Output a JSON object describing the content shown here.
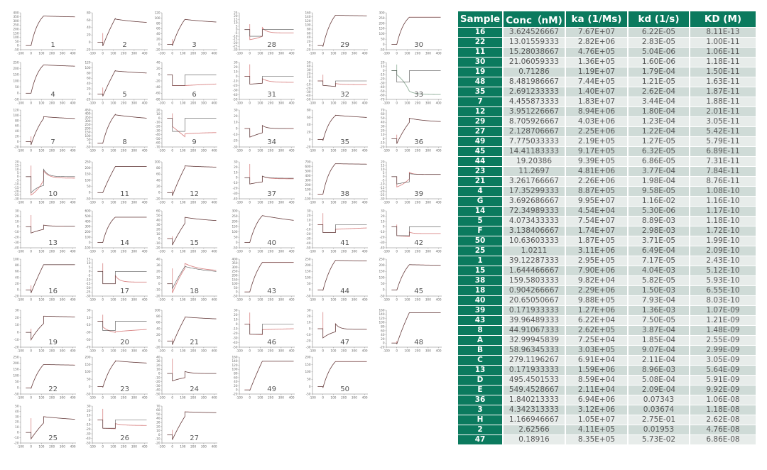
{
  "table": {
    "headers": [
      "Sample",
      "Conc（nM)",
      "ka (1/Ms)",
      "kd (1/s)",
      "KD (M)"
    ],
    "colors": {
      "header_bg": "#0b7a5e",
      "row_dark": "#cfdbd7",
      "row_light": "#e7ecea"
    },
    "rows": [
      [
        "16",
        "3.624526667",
        "7.67E+07",
        "6.22E-05",
        "8.11E-13"
      ],
      [
        "22",
        "13.01559333",
        "2.82E+06",
        "2.83E-05",
        "1.00E-11"
      ],
      [
        "11",
        "15.28038667",
        "4.76E+05",
        "5.04E-06",
        "1.06E-11"
      ],
      [
        "30",
        "21.06059333",
        "1.36E+05",
        "1.60E-06",
        "1.18E-11"
      ],
      [
        "19",
        "0.71286",
        "1.19E+07",
        "1.79E-04",
        "1.50E-11"
      ],
      [
        "48",
        "8.481986667",
        "7.44E+05",
        "1.21E-05",
        "1.63E-11"
      ],
      [
        "35",
        "2.691233333",
        "1.40E+07",
        "2.62E-04",
        "1.87E-11"
      ],
      [
        "7",
        "4.455873333",
        "1.83E+07",
        "3.44E-04",
        "1.88E-11"
      ],
      [
        "12",
        "3.951226667",
        "8.94E+06",
        "1.80E-04",
        "2.01E-11"
      ],
      [
        "29",
        "8.705926667",
        "4.03E+06",
        "1.23E-04",
        "3.05E-11"
      ],
      [
        "27",
        "2.128706667",
        "2.25E+06",
        "1.22E-04",
        "5.42E-11"
      ],
      [
        "49",
        "7.775033333",
        "2.19E+05",
        "1.27E-05",
        "5.79E-11"
      ],
      [
        "45",
        "14.41183333",
        "9.17E+05",
        "6.32E-05",
        "6.89E-11"
      ],
      [
        "44",
        "19.20386",
        "9.39E+05",
        "6.86E-05",
        "7.31E-11"
      ],
      [
        "23",
        "11.2697",
        "4.81E+06",
        "3.77E-04",
        "7.84E-11"
      ],
      [
        "21",
        "3.261766667",
        "2.26E+06",
        "1.98E-04",
        "8.76E-11"
      ],
      [
        "4",
        "17.35299333",
        "8.87E+05",
        "9.58E-05",
        "1.08E-10"
      ],
      [
        "G",
        "3.692686667",
        "9.95E+07",
        "1.16E-02",
        "1.16E-10"
      ],
      [
        "14",
        "72.34989333",
        "4.54E+04",
        "5.30E-06",
        "1.17E-10"
      ],
      [
        "5",
        "4.073433333",
        "7.54E+07",
        "8.89E-03",
        "1.18E-10"
      ],
      [
        "F",
        "3.138406667",
        "1.74E+07",
        "2.98E-03",
        "1.72E-10"
      ],
      [
        "50",
        "10.63603333",
        "1.87E+05",
        "3.71E-05",
        "1.99E-10"
      ],
      [
        "25",
        "1.0211",
        "3.11E+06",
        "6.49E-04",
        "2.09E-10"
      ],
      [
        "1",
        "39.12287333",
        "2.95E+05",
        "7.17E-05",
        "2.43E-10"
      ],
      [
        "15",
        "1.644466667",
        "7.90E+06",
        "4.04E-03",
        "5.12E-10"
      ],
      [
        "38",
        "159.5803333",
        "9.82E+04",
        "5.82E-05",
        "5.93E-10"
      ],
      [
        "18",
        "0.904266667",
        "2.29E+06",
        "1.50E-03",
        "6.55E-10"
      ],
      [
        "40",
        "20.65050667",
        "9.88E+05",
        "7.93E-04",
        "8.03E-10"
      ],
      [
        "39",
        "0.171933333",
        "1.27E+06",
        "1.36E-03",
        "1.07E-09"
      ],
      [
        "43",
        "39.96489333",
        "6.22E+04",
        "7.50E-05",
        "1.21E-09"
      ],
      [
        "8",
        "44.91067333",
        "2.62E+05",
        "3.87E-04",
        "1.48E-09"
      ],
      [
        "A",
        "32.99945839",
        "7.25E+04",
        "1.85E-04",
        "2.55E-09"
      ],
      [
        "B",
        "58.96345333",
        "3.03E+05",
        "9.07E-04",
        "2.99E-09"
      ],
      [
        "C",
        "279.1196267",
        "6.91E+04",
        "2.11E-04",
        "3.05E-09"
      ],
      [
        "13",
        "0.171933333",
        "1.59E+06",
        "8.96E-03",
        "5.64E-09"
      ],
      [
        "D",
        "495.4501533",
        "8.59E+04",
        "5.08E-04",
        "5.91E-09"
      ],
      [
        "E",
        "549.4528667",
        "2.11E+04",
        "2.09E-04",
        "9.92E-09"
      ],
      [
        "36",
        "1.840213333",
        "6.94E+06",
        "0.07343",
        "1.06E-08"
      ],
      [
        "3",
        "4.342313333",
        "3.12E+06",
        "0.03674",
        "1.18E-08"
      ],
      [
        "H",
        "1.166946667",
        "1.05E+07",
        "2.75E-01",
        "2.62E-08"
      ],
      [
        "2",
        "2.62566",
        "4.11E+05",
        "0.01953",
        "4.76E-08"
      ],
      [
        "47",
        "0.18916",
        "8.35E+05",
        "5.73E-02",
        "6.86E-08"
      ]
    ]
  },
  "chart_data": {
    "type": "line",
    "description_fields": "each panel: label, ylim, ystep; series curves in data units: a0=value after injection start (t=0), p=value at end of association (t=120), k=curvature, d0=value at dissociation start, e=value at t=420, tau=decay constant (s), spike=injection artefact value at t=0",
    "xlim": [
      -100,
      430
    ],
    "xticks": [
      -100,
      0,
      100,
      200,
      300,
      400
    ],
    "series_colors": {
      "measured": "#333333",
      "fit": "#d98585"
    },
    "panels": [
      {
        "label": "1",
        "ylim": [
          -50,
          400
        ],
        "ystep": 50,
        "m": [
          0,
          360,
          1.5,
          360,
          350,
          1000
        ],
        "spike": 0
      },
      {
        "label": "2",
        "ylim": [
          -20,
          80
        ],
        "ystep": 20,
        "m": [
          -10,
          65,
          0.3,
          63,
          54,
          300
        ],
        "spike": 25
      },
      {
        "label": "3",
        "ylim": [
          -20,
          120
        ],
        "ystep": 20,
        "m": [
          -5,
          95,
          0.8,
          95,
          85,
          400
        ],
        "spike": 20
      },
      {
        "label": "4",
        "ylim": [
          -50,
          250
        ],
        "ystep": 50,
        "m": [
          0,
          230,
          1.5,
          230,
          220,
          1000
        ],
        "spike": 0
      },
      {
        "label": "5",
        "ylim": [
          -20,
          120
        ],
        "ystep": 20,
        "m": [
          -8,
          90,
          0.2,
          88,
          80,
          400
        ],
        "spike": 25
      },
      {
        "label": "6",
        "ylim": [
          -80,
          40
        ],
        "ystep": 20,
        "m": [
          -35,
          -35,
          0,
          0,
          0,
          1
        ],
        "f": [
          -35,
          -35,
          0,
          -35,
          -30,
          1000
        ],
        "spike": 0
      },
      {
        "label": "7",
        "ylim": [
          -20,
          120
        ],
        "ystep": 20,
        "m": [
          -12,
          88,
          0.8,
          95,
          88,
          300
        ],
        "spike": 20
      },
      {
        "label": "8",
        "ylim": [
          -50,
          450
        ],
        "ystep": 50,
        "m": [
          0,
          390,
          1.2,
          385,
          340,
          500
        ],
        "spike": 0
      },
      {
        "label": "9",
        "ylim": [
          -70,
          20
        ],
        "ystep": 10,
        "m": [
          -32,
          -32,
          0,
          0,
          0,
          1
        ],
        "f": [
          -20,
          -45,
          0,
          -38,
          -35,
          200
        ],
        "spike": 12
      },
      {
        "label": "10",
        "ylim": [
          -30,
          20
        ],
        "ystep": 5,
        "m": [
          -22,
          -12,
          1.5,
          10,
          0,
          40
        ],
        "f": [
          -25,
          -5,
          -1,
          8,
          -2,
          50
        ],
        "spike": 15
      },
      {
        "label": "11",
        "ylim": [
          -50,
          250
        ],
        "ystep": 50,
        "m": [
          0,
          212,
          0.3,
          212,
          212,
          1000
        ],
        "spike": 0
      },
      {
        "label": "12",
        "ylim": [
          -20,
          100
        ],
        "ystep": 20,
        "m": [
          -10,
          82,
          0.3,
          87,
          83,
          300
        ],
        "spike": 8
      },
      {
        "label": "13",
        "ylim": [
          -40,
          30
        ],
        "ystep": 10,
        "m": [
          -12,
          -5,
          0.5,
          3,
          1,
          50
        ],
        "spike": 22
      },
      {
        "label": "14",
        "ylim": [
          -100,
          600
        ],
        "ystep": 100,
        "m": [
          0,
          480,
          1.5,
          480,
          480,
          1000
        ],
        "spike": 0
      },
      {
        "label": "15",
        "ylim": [
          -20,
          60
        ],
        "ystep": 10,
        "m": [
          -14,
          33,
          0.3,
          46,
          39,
          300
        ],
        "spike": 5
      },
      {
        "label": "16",
        "ylim": [
          -20,
          100
        ],
        "ystep": 20,
        "m": [
          -10,
          82,
          0.2,
          82,
          82,
          1000
        ],
        "spike": 15
      },
      {
        "label": "17",
        "ylim": [
          -30,
          15
        ],
        "ystep": 5,
        "m": [
          -15,
          -15,
          0,
          0,
          0,
          1
        ],
        "f": [
          -15,
          -15,
          0,
          -5,
          -13,
          40
        ],
        "spike": 10
      },
      {
        "label": "18",
        "ylim": [
          -20,
          40
        ],
        "ystep": 10,
        "m": [
          -8,
          28,
          0.3,
          28,
          20,
          300
        ],
        "f": [
          -15,
          25,
          0.5,
          33,
          22,
          150
        ],
        "spike": 25
      },
      {
        "label": "19",
        "ylim": [
          -20,
          30
        ],
        "ystep": 10,
        "m": [
          -10,
          12,
          0.6,
          22,
          21,
          1000
        ],
        "spike": 5
      },
      {
        "label": "20",
        "ylim": [
          -70,
          30
        ],
        "ystep": 20,
        "m": [
          -25,
          -25,
          0,
          0,
          0,
          1
        ],
        "f": [
          -15,
          -30,
          1.5,
          -28,
          -22,
          1000
        ],
        "spike": 18
      },
      {
        "label": "21",
        "ylim": [
          -20,
          100
        ],
        "ystep": 20,
        "m": [
          -12,
          75,
          0.3,
          78,
          72,
          500
        ],
        "spike": 8
      },
      {
        "label": "22",
        "ylim": [
          -50,
          250
        ],
        "ystep": 50,
        "m": [
          -5,
          190,
          1,
          190,
          185,
          1000
        ],
        "spike": 0
      },
      {
        "label": "23",
        "ylim": [
          -50,
          200
        ],
        "ystep": 50,
        "m": [
          -5,
          170,
          1,
          175,
          160,
          400
        ],
        "spike": 0
      },
      {
        "label": "24",
        "ylim": [
          -50,
          40
        ],
        "ystep": 10,
        "m": [
          -18,
          -10,
          0.5,
          5,
          0,
          60
        ],
        "spike": 36
      },
      {
        "label": "25",
        "ylim": [
          -20,
          50
        ],
        "ystep": 10,
        "m": [
          -12,
          18,
          0.3,
          30,
          25,
          500
        ],
        "spike": 27
      },
      {
        "label": "26",
        "ylim": [
          -50,
          30
        ],
        "ystep": 10,
        "m": [
          -18,
          -18,
          0,
          0,
          0,
          1
        ],
        "f": [
          -18,
          -19,
          0,
          -8,
          -12,
          80
        ],
        "spike": 24
      },
      {
        "label": "27",
        "ylim": [
          -20,
          70
        ],
        "ystep": 10,
        "m": [
          -12,
          45,
          0.3,
          56,
          54,
          1000
        ],
        "spike": 12
      },
      {
        "label": "28",
        "ylim": [
          -30,
          25
        ],
        "ystep": 5,
        "m": [
          -10,
          -10,
          0,
          0,
          0,
          1
        ],
        "f": [
          -15,
          -10,
          -1,
          3,
          -5,
          40
        ],
        "spike": 8
      },
      {
        "label": "29",
        "ylim": [
          -20,
          160
        ],
        "ystep": 20,
        "m": [
          -5,
          148,
          1.2,
          148,
          145,
          1000
        ],
        "spike": 0
      },
      {
        "label": "30",
        "ylim": [
          -50,
          300
        ],
        "ystep": 50,
        "m": [
          0,
          258,
          1.5,
          258,
          258,
          1000
        ],
        "spike": 0
      },
      {
        "label": "31",
        "ylim": [
          -50,
          30
        ],
        "ystep": 10,
        "m": [
          -17,
          -15,
          0,
          0,
          0,
          1
        ],
        "f": [
          -17,
          -15,
          0,
          -5,
          -13,
          60
        ],
        "spike": 26
      },
      {
        "label": "32",
        "ylim": [
          -50,
          50
        ],
        "ystep": 10,
        "m": [
          -12,
          -15,
          0,
          0,
          0,
          1
        ],
        "f": [
          -12,
          -15,
          0,
          -7,
          -10,
          60
        ],
        "spike": 17
      },
      {
        "label": "33",
        "ylim": [
          -70,
          20
        ],
        "ystep": 10,
        "m": [
          -28,
          -28,
          0,
          0,
          0,
          1
        ],
        "f": [
          -10,
          -50,
          -1,
          -50,
          -58,
          60
        ],
        "fit_color": "#8fae98",
        "spike": 15
      },
      {
        "label": "34",
        "ylim": [
          -30,
          30
        ],
        "ystep": 10,
        "m": [
          -14,
          -7,
          0.3,
          5,
          0,
          40
        ],
        "spike": 0
      },
      {
        "label": "35",
        "ylim": [
          -20,
          80
        ],
        "ystep": 20,
        "m": [
          -3,
          65,
          1.5,
          66,
          60,
          600
        ],
        "spike": 3
      },
      {
        "label": "36",
        "ylim": [
          -20,
          70
        ],
        "ystep": 10,
        "m": [
          -12,
          40,
          0.5,
          50,
          42,
          200
        ],
        "spike": 10
      },
      {
        "label": "37",
        "ylim": [
          -40,
          30
        ],
        "ystep": 10,
        "m": [
          -12,
          -8,
          0.5,
          3,
          -1,
          50
        ],
        "f": [
          -12,
          -8,
          0.5,
          3,
          -2,
          50
        ],
        "spike": 26
      },
      {
        "label": "38",
        "ylim": [
          -100,
          700
        ],
        "ystep": 100,
        "m": [
          0,
          660,
          1.5,
          660,
          650,
          1000
        ],
        "spike": 0
      },
      {
        "label": "39",
        "ylim": [
          -30,
          20
        ],
        "ystep": 5,
        "m": [
          -10,
          -7,
          0.3,
          4,
          3,
          50
        ],
        "f": [
          -14,
          -3,
          -1,
          6,
          3,
          30
        ],
        "spike": 0
      },
      {
        "label": "40",
        "ylim": [
          -50,
          300
        ],
        "ystep": 50,
        "m": [
          0,
          255,
          1.2,
          255,
          210,
          800
        ],
        "spike": 0
      },
      {
        "label": "41",
        "ylim": [
          -50,
          30
        ],
        "ystep": 10,
        "m": [
          -17,
          -17,
          0,
          0,
          0,
          1
        ],
        "f": [
          -17,
          -17,
          0,
          -10,
          -7,
          1000
        ],
        "spike": 25
      },
      {
        "label": "42",
        "ylim": [
          -40,
          30
        ],
        "ystep": 10,
        "m": [
          -17,
          -17,
          0,
          0,
          0,
          1
        ],
        "f": [
          -17,
          -19,
          0,
          -10,
          -13,
          30
        ],
        "spike": 4
      },
      {
        "label": "43",
        "ylim": [
          -50,
          400
        ],
        "ystep": 50,
        "m": [
          0,
          360,
          1,
          360,
          360,
          1000
        ],
        "spike": 0
      },
      {
        "label": "44",
        "ylim": [
          -50,
          250
        ],
        "ystep": 50,
        "m": [
          -5,
          240,
          1,
          240,
          235,
          1000
        ],
        "spike": 0
      },
      {
        "label": "45",
        "ylim": [
          -50,
          250
        ],
        "ystep": 50,
        "m": [
          -3,
          205,
          1,
          205,
          200,
          1000
        ],
        "spike": 0
      },
      {
        "label": "46",
        "ylim": [
          -50,
          30
        ],
        "ystep": 10,
        "m": [
          -22,
          -22,
          0,
          0,
          0,
          1
        ],
        "f": [
          -22,
          -23,
          0,
          -12,
          -10,
          1000
        ],
        "spike": 25
      },
      {
        "label": "47",
        "ylim": [
          -30,
          30
        ],
        "ystep": 10,
        "m": [
          -15,
          -5,
          1,
          8,
          -1,
          40
        ],
        "spike": 27
      },
      {
        "label": "48",
        "ylim": [
          -20,
          160
        ],
        "ystep": 20,
        "m": [
          -5,
          148,
          0.3,
          148,
          148,
          1000
        ],
        "spike": 10
      },
      {
        "label": "49",
        "ylim": [
          -20,
          160
        ],
        "ystep": 20,
        "m": [
          -3,
          140,
          0.2,
          140,
          140,
          1000
        ],
        "spike": 0
      },
      {
        "label": "50",
        "ylim": [
          -50,
          200
        ],
        "ystep": 50,
        "m": [
          -8,
          170,
          1.2,
          170,
          170,
          1000
        ],
        "spike": 0
      }
    ]
  }
}
